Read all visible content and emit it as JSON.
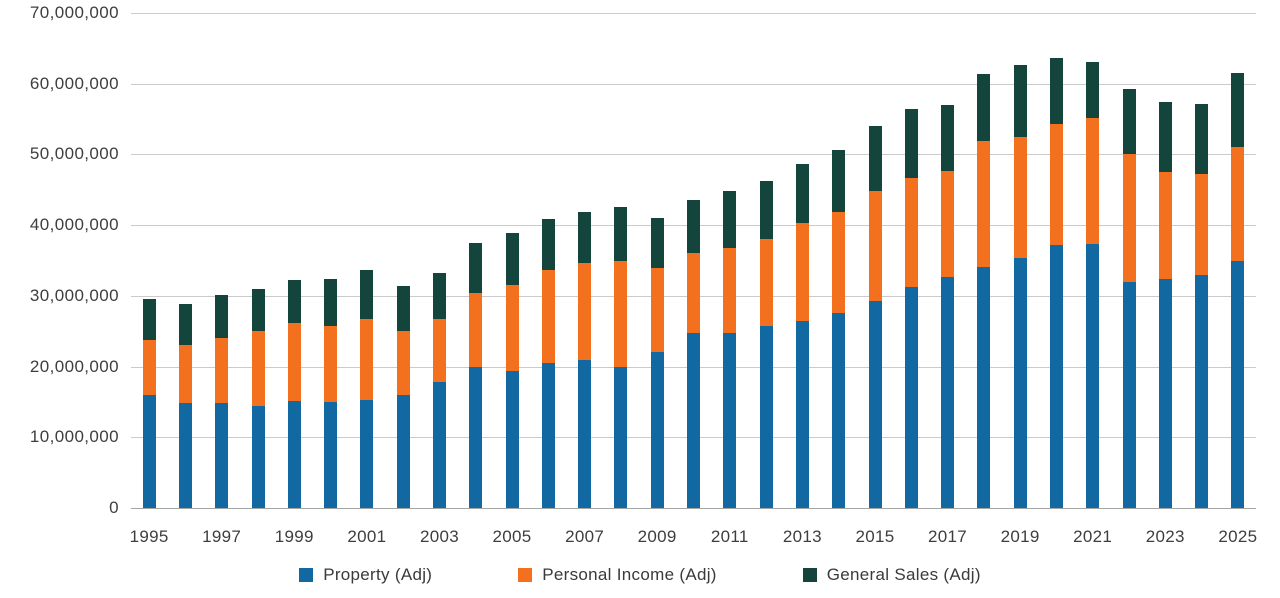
{
  "chart_data": {
    "type": "bar",
    "stacked": true,
    "title": "",
    "xlabel": "",
    "ylabel": "",
    "grid": "horizontal",
    "legend_position": "bottom",
    "ylim": [
      0,
      70000000
    ],
    "y_tick_values": [
      0,
      10000000,
      20000000,
      30000000,
      40000000,
      50000000,
      60000000,
      70000000
    ],
    "y_tick_labels": [
      "0",
      "10,000,000",
      "20,000,000",
      "30,000,000",
      "40,000,000",
      "50,000,000",
      "60,000,000",
      "70,000,000"
    ],
    "x_tick_labels": [
      "1995",
      "1997",
      "1999",
      "2001",
      "2003",
      "2005",
      "2007",
      "2009",
      "2011",
      "2013",
      "2015",
      "2017",
      "2019",
      "2021",
      "2023",
      "2025"
    ],
    "categories": [
      "1995",
      "1996",
      "1997",
      "1998",
      "1999",
      "2000",
      "2001",
      "2002",
      "2003",
      "2004",
      "2005",
      "2006",
      "2007",
      "2008",
      "2009",
      "2010",
      "2011",
      "2012",
      "2013",
      "2014",
      "2015",
      "2016",
      "2017",
      "2018",
      "2019",
      "2020",
      "2021",
      "2022",
      "2023",
      "2024",
      "2025"
    ],
    "series": [
      {
        "name": "Property (Adj)",
        "color": "#1268A0",
        "values": [
          16000000,
          14900000,
          14900000,
          14500000,
          15200000,
          15000000,
          15300000,
          16000000,
          17800000,
          20000000,
          19400000,
          20500000,
          20900000,
          20000000,
          22000000,
          24700000,
          24800000,
          25700000,
          26500000,
          27600000,
          29300000,
          31300000,
          32700000,
          34100000,
          35300000,
          37200000,
          37300000,
          32000000,
          32400000,
          33000000,
          34900000
        ]
      },
      {
        "name": "Personal Income (Adj)",
        "color": "#F3701E",
        "values": [
          7800000,
          8100000,
          9100000,
          10600000,
          11000000,
          10700000,
          11500000,
          9100000,
          9000000,
          10400000,
          12100000,
          13100000,
          13700000,
          15000000,
          11900000,
          11300000,
          11900000,
          12300000,
          13800000,
          14200000,
          15500000,
          15400000,
          14900000,
          17800000,
          17200000,
          17100000,
          17900000,
          18000000,
          15100000,
          14200000,
          16100000
        ]
      },
      {
        "name": "General Sales (Adj)",
        "color": "#14453C",
        "values": [
          5800000,
          5900000,
          6100000,
          5900000,
          6100000,
          6700000,
          6800000,
          6300000,
          6400000,
          7100000,
          7400000,
          7300000,
          7300000,
          7600000,
          7100000,
          7600000,
          8100000,
          8200000,
          8400000,
          8900000,
          9200000,
          9700000,
          9400000,
          9500000,
          10200000,
          9300000,
          7900000,
          9300000,
          9900000,
          10000000,
          10500000
        ]
      }
    ]
  },
  "colors": {
    "gridline": "#cccbcb",
    "axis_line": "#a7a6a6",
    "tick_text": "#3e3e3d"
  }
}
